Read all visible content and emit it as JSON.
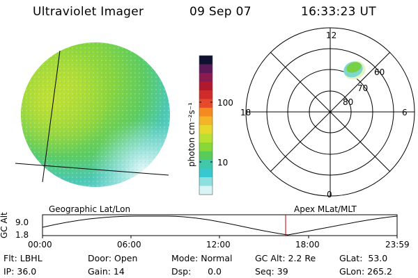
{
  "header": {
    "instrument": "Ultraviolet Imager",
    "date": "09 Sep 07",
    "time": "16:33:23 UT"
  },
  "colorbar": {
    "unit_label": "photon cm⁻²s⁻¹",
    "ticks": [
      "100",
      "10"
    ],
    "colors": [
      "#101030",
      "#5a1a5a",
      "#8a1a50",
      "#b01830",
      "#d02a2a",
      "#e64a2a",
      "#f58a20",
      "#f5b428",
      "#e8d82e",
      "#b8e030",
      "#88d838",
      "#58cc58",
      "#40c8a8",
      "#38c8d0",
      "#8ee0e0",
      "#d8f4f4"
    ]
  },
  "polar_plot": {
    "top_label": "12",
    "left_label": "18",
    "right_label": "6",
    "bottom_label": "0",
    "ring_labels": [
      "60",
      "70",
      "80"
    ]
  },
  "timeline": {
    "y_axis_label": "GC Alt",
    "y_ticks": [
      "9.0",
      "1.8"
    ],
    "left_title": "Geographic Lat/Lon",
    "right_title": "Apex  MLat/MLT",
    "x_ticks": [
      "00:00",
      "06:00",
      "12:00",
      "18:00",
      "23:59"
    ],
    "marker_color": "#c00000"
  },
  "footer": {
    "flt": "Flt: LBHL",
    "ip": "IP: 36.0",
    "door": "Door: Open",
    "gain": "Gain: 14",
    "mode": "Mode: Normal",
    "dsp": "Dsp:      0.0",
    "gc_alt": "GC Alt: 2.2 Re",
    "seq": "Seq: 39",
    "glat": "GLat:  53.0",
    "glon": "GLon: 265.2"
  }
}
